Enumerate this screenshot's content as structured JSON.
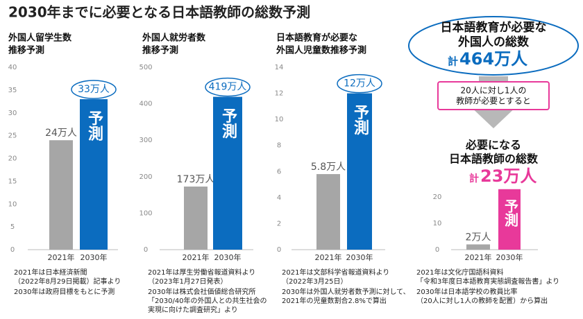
{
  "title": "2030年までに必要となる日本語教師の総数予測",
  "panel": {
    "heading": [
      "日本語教育が必要な",
      "外国人の総数"
    ],
    "total_prefix": "計",
    "total_label": "464万人",
    "ratio_note": [
      "20人に対し1人の",
      "教師が必要とすると"
    ],
    "result_heading": [
      "必要になる",
      "日本語教師の総数"
    ],
    "result_prefix": "計"
  },
  "chart_data": [
    {
      "type": "bar",
      "title": [
        "外国人留学生数",
        "推移予測"
      ],
      "categories": [
        "2021年",
        "2030年"
      ],
      "values": [
        24,
        33
      ],
      "value_labels": [
        "24万人",
        "33万人"
      ],
      "colors": [
        "#a6a6a6",
        "#0b6cbf"
      ],
      "annotation": "予測",
      "ylim": [
        0,
        40
      ],
      "yticks": [
        0,
        5,
        10,
        15,
        20,
        25,
        30,
        35,
        40
      ],
      "notes": [
        "2021年は日本経済新聞",
        "（2022年8月29日掲載）記事より",
        "2030年は政府目標をもとに予測"
      ]
    },
    {
      "type": "bar",
      "title": [
        "外国人就労者数",
        "推移予測"
      ],
      "categories": [
        "2021年",
        "2030年"
      ],
      "values": [
        173,
        419
      ],
      "value_labels": [
        "173万人",
        "419万人"
      ],
      "colors": [
        "#a6a6a6",
        "#0b6cbf"
      ],
      "annotation": "予測",
      "ylim": [
        0,
        500
      ],
      "yticks": [
        0,
        100,
        200,
        300,
        400,
        500
      ],
      "notes": [
        "2021年は厚生労働省報道資料より",
        "（2023年1月27日発表）",
        "2030年は株式会社価値総合研究所",
        "「2030/40年の外国人との共生社会の",
        "実現に向けた調査研究」より"
      ]
    },
    {
      "type": "bar",
      "title": [
        "日本語教育が必要な",
        "外国人児童数推移予測"
      ],
      "categories": [
        "2021年",
        "2030年"
      ],
      "values": [
        5.8,
        12
      ],
      "value_labels": [
        "5.8万人",
        "12万人"
      ],
      "colors": [
        "#a6a6a6",
        "#0b6cbf"
      ],
      "annotation": "予測",
      "ylim": [
        0,
        14
      ],
      "yticks": [
        0,
        2,
        4,
        6,
        8,
        10,
        12,
        14
      ],
      "notes": [
        "2021年は文部科学省報道資料より",
        "（2022年3月25日）",
        "2030年は外国人就労者数予測に対して、",
        "2021年の児童数割合2.8%で算出"
      ]
    },
    {
      "type": "bar",
      "categories": [
        "2021年",
        "2030年"
      ],
      "values": [
        2,
        23
      ],
      "value_labels": [
        "2万人",
        "23万人"
      ],
      "colors": [
        "#a6a6a6",
        "#e8399a"
      ],
      "annotation": "予測",
      "ylim": [
        0,
        24
      ],
      "yticks": [
        0,
        10,
        20
      ],
      "notes": [
        "2021年は文化庁国語科資料",
        "「令和3年度日本語教育実態調査報告書」より",
        "2030年は日本語学校の教員比率",
        "（20人に対し1人の教師を配置）から算出"
      ]
    }
  ]
}
